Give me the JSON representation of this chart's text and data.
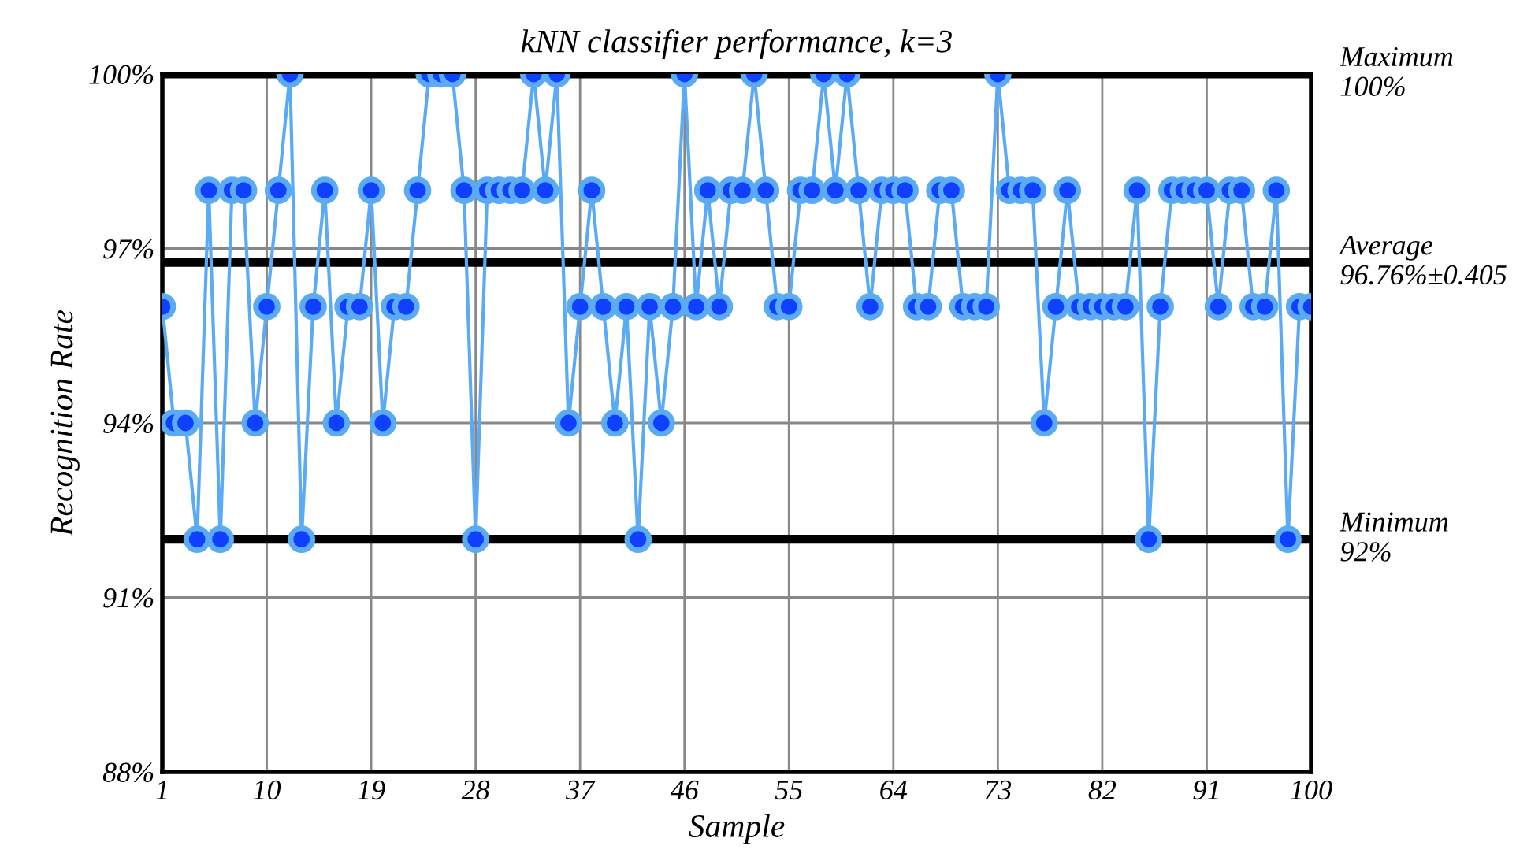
{
  "chart_data": {
    "type": "line",
    "title": "kNN classifier performance, k=3",
    "xlabel": "Sample",
    "ylabel": "Recognition Rate",
    "x": [
      1,
      2,
      3,
      4,
      5,
      6,
      7,
      8,
      9,
      10,
      11,
      12,
      13,
      14,
      15,
      16,
      17,
      18,
      19,
      20,
      21,
      22,
      23,
      24,
      25,
      26,
      27,
      28,
      29,
      30,
      31,
      32,
      33,
      34,
      35,
      36,
      37,
      38,
      39,
      40,
      41,
      42,
      43,
      44,
      45,
      46,
      47,
      48,
      49,
      50,
      51,
      52,
      53,
      54,
      55,
      56,
      57,
      58,
      59,
      60,
      61,
      62,
      63,
      64,
      65,
      66,
      67,
      68,
      69,
      70,
      71,
      72,
      73,
      74,
      75,
      76,
      77,
      78,
      79,
      80,
      81,
      82,
      83,
      84,
      85,
      86,
      87,
      88,
      89,
      90,
      91,
      92,
      93,
      94,
      95,
      96,
      97,
      98,
      99,
      100
    ],
    "series": [
      {
        "color": "#5aaaf5",
        "values": [
          96,
          94,
          94,
          92,
          98,
          92,
          98,
          98,
          94,
          96,
          98,
          100,
          92,
          96,
          98,
          94,
          96,
          96,
          98,
          94,
          96,
          96,
          98,
          100,
          100,
          100,
          98,
          92,
          98,
          98,
          98,
          98,
          100,
          98,
          100,
          94,
          96,
          98,
          96,
          94,
          96,
          92,
          96,
          94,
          96,
          100,
          96,
          98,
          96,
          98,
          98,
          100,
          98,
          96,
          96,
          98,
          98,
          100,
          98,
          100,
          98,
          96,
          98,
          98,
          98,
          96,
          96,
          98,
          98,
          96,
          96,
          96,
          100,
          98,
          98,
          98,
          94,
          96,
          98,
          96,
          96,
          96,
          96,
          96,
          98,
          92,
          96,
          98,
          98,
          98,
          98,
          96,
          98,
          98,
          96,
          96,
          98,
          92,
          96,
          96
        ]
      }
    ],
    "xlim": [
      1,
      100
    ],
    "xticks": [
      1,
      10,
      19,
      28,
      37,
      46,
      55,
      64,
      73,
      82,
      91,
      100
    ],
    "ylim": [
      88,
      100
    ],
    "yticks": [
      {
        "value": 88,
        "label": "88%"
      },
      {
        "value": 91,
        "label": "91%"
      },
      {
        "value": 94,
        "label": "94%"
      },
      {
        "value": 97,
        "label": "97%"
      },
      {
        "value": 100,
        "label": "100%"
      }
    ],
    "ref_lines": [
      {
        "axis": "y",
        "value": 100,
        "label": "Maximum\n100%",
        "color": "#000000"
      },
      {
        "axis": "y",
        "value": 96.76,
        "label": "Average\n96.76%±0.405",
        "color": "#000000"
      },
      {
        "axis": "y",
        "value": 92,
        "label": "Minimum\n92%",
        "color": "#000000"
      }
    ],
    "grid": true,
    "marker": "circle",
    "line_style": "solid",
    "legend": false
  }
}
